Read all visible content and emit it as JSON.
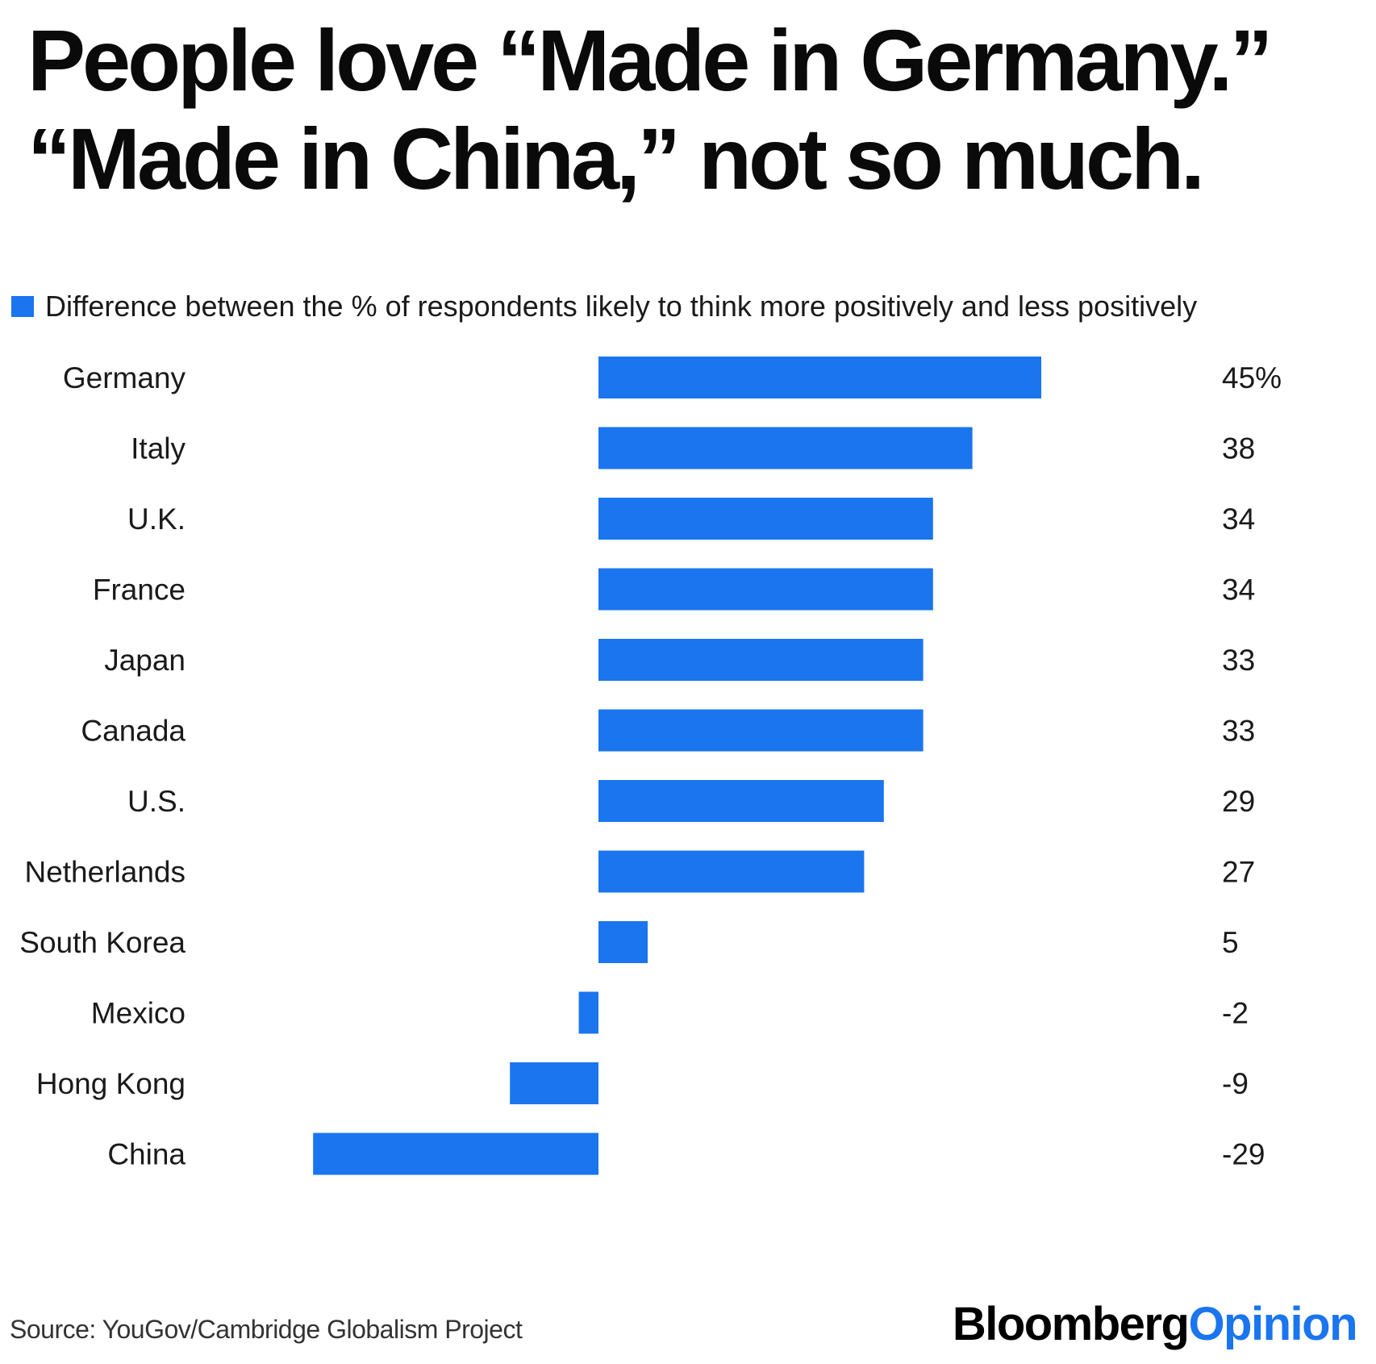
{
  "title": {
    "line1": "People love “Made in Germany.”",
    "line2": "“Made in China,” not so much."
  },
  "legend": {
    "label": "Difference between the % of respondents likely to think more positively and less positively"
  },
  "colors": {
    "bar": "#1a75ee",
    "logo_accent": "#1a75ee"
  },
  "chart_data": {
    "type": "bar",
    "orientation": "horizontal",
    "categories": [
      "Germany",
      "Italy",
      "U.K.",
      "France",
      "Japan",
      "Canada",
      "U.S.",
      "Netherlands",
      "South Korea",
      "Mexico",
      "Hong Kong",
      "China"
    ],
    "values": [
      45,
      38,
      34,
      34,
      33,
      33,
      29,
      27,
      5,
      -2,
      -9,
      -29
    ],
    "value_labels": [
      "45%",
      "38",
      "34",
      "34",
      "33",
      "33",
      "29",
      "27",
      "5",
      "-2",
      "-9",
      "-29"
    ],
    "series": [
      {
        "name": "Difference between the % of respondents likely to think more positively and less positively"
      }
    ],
    "xlim": [
      -29,
      45
    ],
    "grid": false,
    "legend_position": "top-left"
  },
  "footer": {
    "source": "Source: YouGov/Cambridge Globalism Project",
    "logo_part1": "Bloomberg",
    "logo_part2": "Opinion"
  }
}
